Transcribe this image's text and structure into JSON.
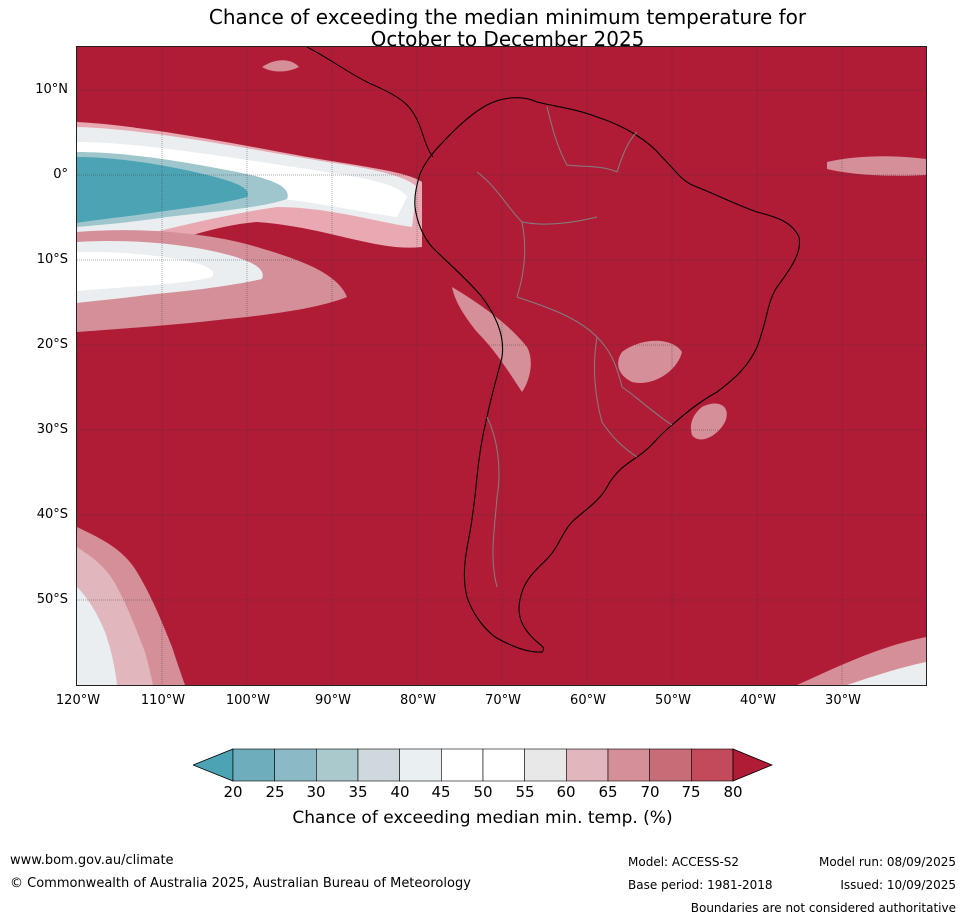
{
  "title": {
    "line1": "Chance of exceeding the median minimum temperature for",
    "line2": "October to December 2025"
  },
  "map": {
    "lat_labels": [
      "10°N",
      "0°",
      "10°S",
      "20°S",
      "30°S",
      "40°S",
      "50°S"
    ],
    "lon_labels": [
      "120°W",
      "110°W",
      "100°W",
      "90°W",
      "80°W",
      "70°W",
      "60°W",
      "50°W",
      "40°W",
      "30°W"
    ],
    "dominant_color": "#b01c36"
  },
  "colorbar": {
    "ticks": [
      "20",
      "25",
      "30",
      "35",
      "40",
      "45",
      "50",
      "55",
      "60",
      "65",
      "70",
      "75",
      "80"
    ],
    "colors": [
      "#4ba3b4",
      "#6eadbb",
      "#8bbac6",
      "#aac9cd",
      "#cfd8dc",
      "#eaf0f2",
      "#ffffff",
      "#ffffff",
      "#e8e8e8",
      "#e1b6bd",
      "#d58f98",
      "#c86d77",
      "#c24a5a",
      "#b01c36"
    ],
    "label": "Chance of exceeding median min. temp. (%)"
  },
  "footer": {
    "website": "www.bom.gov.au/climate",
    "copyright": "© Commonwealth of Australia 2025, Australian Bureau of Meteorology",
    "model": "Model: ACCESS-S2",
    "base_period": "Base period: 1981-2018",
    "model_run": "Model run: 08/09/2025",
    "issued": "Issued: 10/09/2025",
    "disclaimer": "Boundaries are not considered authoritative"
  }
}
